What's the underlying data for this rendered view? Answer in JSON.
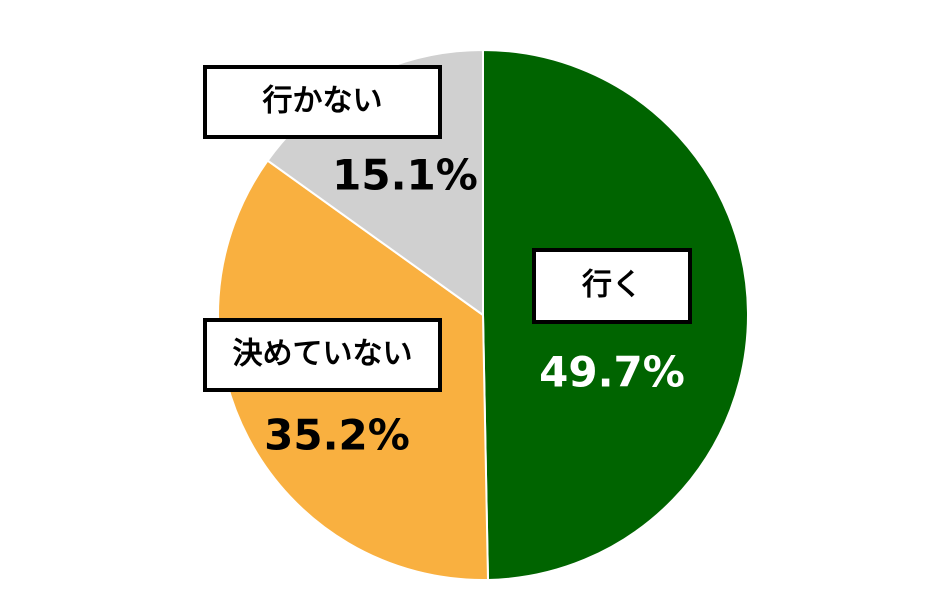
{
  "chart_data": {
    "type": "pie",
    "categories": [
      "行く",
      "決めていない",
      "行かない"
    ],
    "values": [
      49.7,
      35.2,
      15.1
    ],
    "value_labels": [
      "49.7%",
      "35.2%",
      "15.1%"
    ],
    "colors": [
      "#006400",
      "#f9b040",
      "#d0d0d0"
    ]
  }
}
